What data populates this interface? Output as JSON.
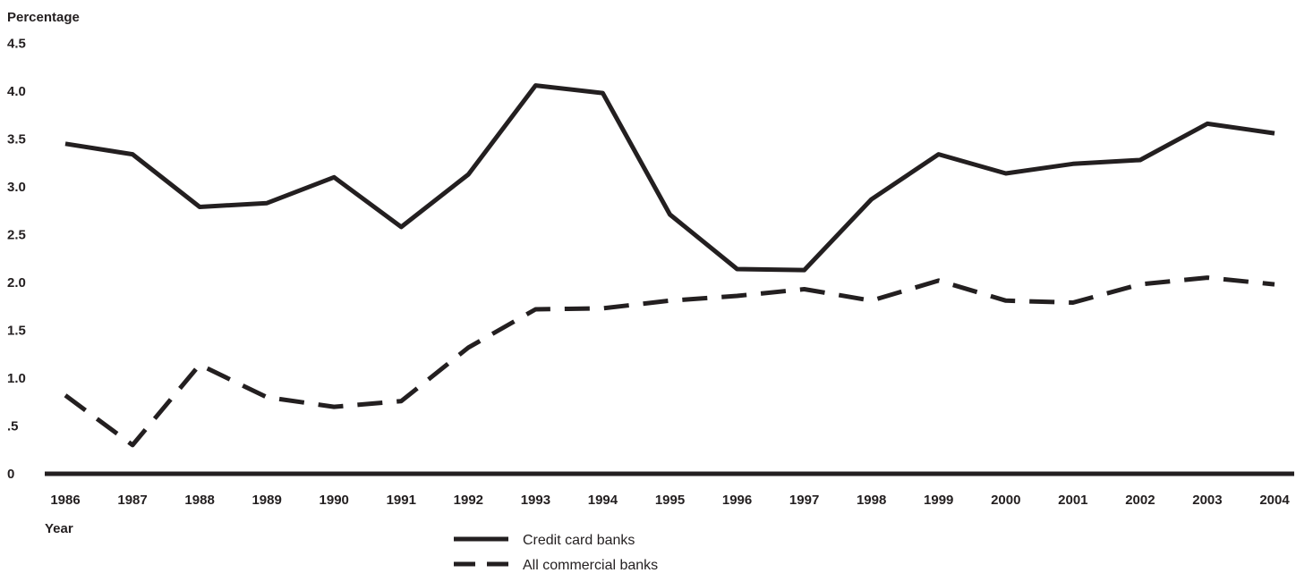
{
  "chart_data": {
    "type": "line",
    "ylabel": "Percentage",
    "xlabel": "Year",
    "ylim": [
      0,
      4.5
    ],
    "yticks": [
      0,
      0.5,
      1.0,
      1.5,
      2.0,
      2.5,
      3.0,
      3.5,
      4.0,
      4.5
    ],
    "ytick_labels": [
      "0",
      ".5",
      "1.0",
      "1.5",
      "2.0",
      "2.5",
      "3.0",
      "3.5",
      "4.0",
      "4.5"
    ],
    "categories": [
      "1986",
      "1987",
      "1988",
      "1989",
      "1990",
      "1991",
      "1992",
      "1993",
      "1994",
      "1995",
      "1996",
      "1997",
      "1998",
      "1999",
      "2000",
      "2001",
      "2002",
      "2003",
      "2004"
    ],
    "grid": false,
    "legend_position": "bottom-center",
    "series": [
      {
        "name": "Credit card banks",
        "style": "solid",
        "color": "#231f20",
        "values": [
          3.45,
          3.34,
          2.79,
          2.83,
          3.1,
          2.58,
          3.13,
          4.06,
          3.98,
          2.71,
          2.14,
          2.13,
          2.87,
          3.34,
          3.14,
          3.24,
          3.28,
          3.66,
          3.56
        ]
      },
      {
        "name": "All commercial banks",
        "style": "dashed",
        "color": "#231f20",
        "values": [
          0.82,
          0.3,
          1.14,
          0.8,
          0.7,
          0.76,
          1.32,
          1.72,
          1.73,
          1.81,
          1.86,
          1.93,
          1.81,
          2.02,
          1.81,
          1.79,
          1.98,
          2.05,
          1.98
        ]
      }
    ]
  }
}
